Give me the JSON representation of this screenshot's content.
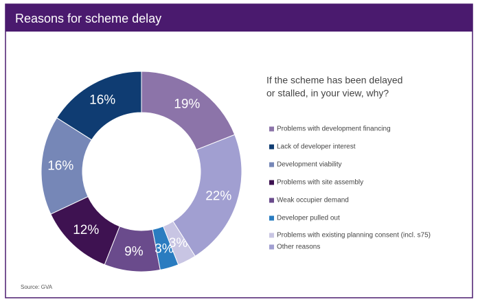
{
  "chart_data": {
    "type": "donut",
    "title": "Reasons for scheme delay",
    "subtitle": [
      "If the scheme has been delayed",
      "or stalled, in your view, why?"
    ],
    "categories": [
      "Problems with development financing",
      "Lack of developer interest",
      "Development viability",
      "Problems with site assembly",
      "Weak occupier demand",
      "Developer pulled out",
      "Problems with existing planning consent (incl. s75)",
      "Other reasons"
    ],
    "values": [
      19,
      16,
      16,
      12,
      9,
      3,
      3,
      22
    ],
    "value_labels": [
      "19%",
      "16%",
      "16%",
      "12%",
      "9%",
      "3%",
      "3%",
      "22%"
    ],
    "colors": [
      "#8c74a9",
      "#0f3c72",
      "#7687b7",
      "#3e1251",
      "#6a4b8c",
      "#2a7cc0",
      "#c8c5e3",
      "#a19fd1"
    ],
    "source": "Source: GVA"
  }
}
